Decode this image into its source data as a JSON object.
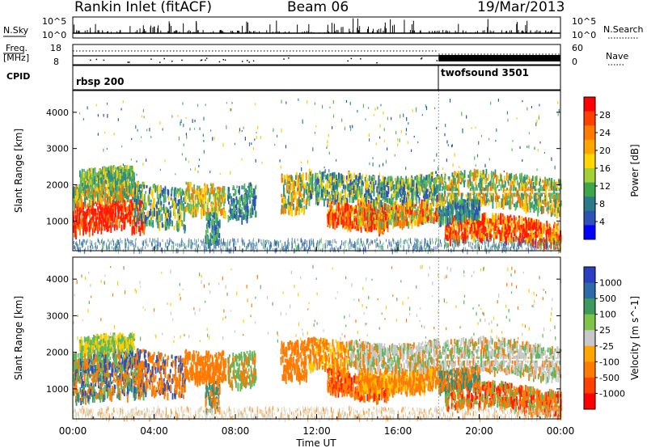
{
  "header": {
    "title": "Rankin Inlet (fitACF)",
    "beam": "Beam 06",
    "date": "19/Mar/2013"
  },
  "top_panel": {
    "left_label": "N.Sky",
    "left_tick_top": "10^5",
    "left_tick_bottom": "10^0",
    "right_label": "N.Search",
    "right_tick_top": "10^5",
    "right_tick_bottom": "10^0"
  },
  "freq_panel": {
    "label_line1": "Freq.",
    "label_line2": "[MHz]",
    "left_tick_top": "18",
    "left_tick_bottom": "8",
    "right_tick_top": "60",
    "right_tick_bottom": "0",
    "right_label": "Nave"
  },
  "cpid_panel": {
    "label": "CPID",
    "programs": [
      {
        "name": "rbsp 200",
        "start_hour": 0
      },
      {
        "name": "twofsound 3501",
        "start_hour": 18
      }
    ]
  },
  "chart_data": [
    {
      "type": "heatmap",
      "ylabel": "Slant Range [km]",
      "y_ticks": [
        "1000",
        "2000",
        "3000",
        "4000"
      ],
      "colorbar_label": "Power [dB]",
      "colorbar_ticks": [
        "28",
        "24",
        "20",
        "16",
        "12",
        "8",
        "4"
      ],
      "colorbar_colors": [
        "#ff0000",
        "#ff4000",
        "#ff7a00",
        "#ffa500",
        "#ffd700",
        "#a3d135",
        "#3da64a",
        "#2a7a8a",
        "#2c52b8",
        "#0000ff"
      ]
    },
    {
      "type": "heatmap",
      "ylabel": "Slant Range [km]",
      "y_ticks": [
        "1000",
        "2000",
        "3000",
        "4000"
      ],
      "colorbar_label": "Velocity [m s^-1]",
      "colorbar_ticks": [
        "1000",
        "500",
        "100",
        "25",
        "-25",
        "-100",
        "-500",
        "-1000"
      ],
      "colorbar_colors": [
        "#2a3fc2",
        "#2c6aa8",
        "#3d9a5a",
        "#7fc44a",
        "#c8c8c8",
        "#ffa500",
        "#ff7a00",
        "#ff4000",
        "#ff0000"
      ]
    }
  ],
  "x_axis": {
    "ticks": [
      "00:00",
      "04:00",
      "08:00",
      "12:00",
      "16:00",
      "20:00",
      "00:00"
    ],
    "label": "Time UT"
  },
  "palette": {
    "red": "#ff1a00",
    "orange": "#ff7a00",
    "yellow": "#ffcc00",
    "green": "#5cb85c",
    "teal": "#2f8f7f",
    "blue": "#2c52b8",
    "grey": "#c8c8c8"
  }
}
